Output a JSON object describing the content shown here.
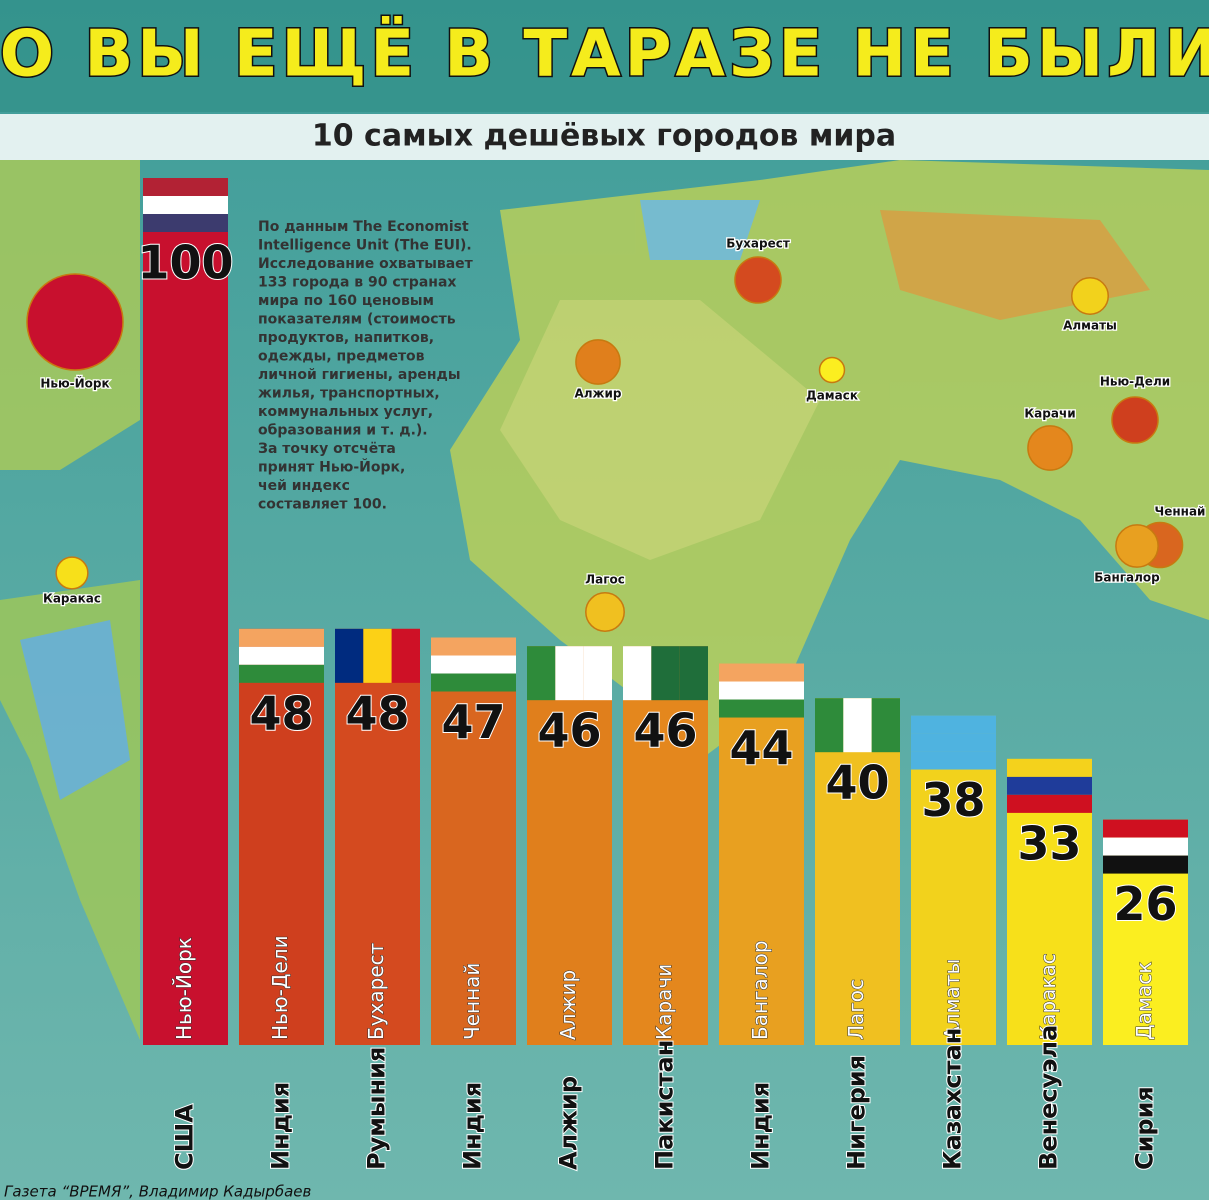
{
  "chart_data": {
    "type": "bar",
    "title": "ЭТО ВЫ ЕЩЁ В ТАРАЗЕ НЕ БЫЛИ...",
    "subtitle": "10 самых дешёвых городов мира",
    "note": [
      "По данным The Economist",
      "Intelligence Unit (The EUI).",
      "Исследование охватывает",
      "133 города в 90 странах",
      "мира по 160 ценовым",
      "показателям (стоимость",
      "продуктов, напитков,",
      "одежды, предметов",
      "личной гигиены, аренды",
      "жилья, транспортных,",
      "коммунальных услуг,",
      "образования и т. д.).",
      "За точку отсчёта",
      "принят Нью-Йорк,",
      "чей индекс",
      "составляет 100."
    ],
    "categories": [
      "Нью-Йорк",
      "Нью-Дели",
      "Бухарест",
      "Ченнай",
      "Алжир",
      "Карачи",
      "Бангалор",
      "Лагос",
      "Алматы",
      "Каракас",
      "Дамаск"
    ],
    "countries": [
      "США",
      "Индия",
      "Румыния",
      "Индия",
      "Алжир",
      "Пакистан",
      "Индия",
      "Нигерия",
      "Казахстан",
      "Венесуэла",
      "Сирия"
    ],
    "values": [
      100,
      48,
      48,
      47,
      46,
      46,
      44,
      40,
      38,
      33,
      26
    ],
    "colors": [
      "#c8102e",
      "#cf3f1e",
      "#d44a1f",
      "#d9661f",
      "#e07f1c",
      "#e4871d",
      "#e8a020",
      "#f0c020",
      "#f2d21c",
      "#f7e01a",
      "#fbee20"
    ],
    "credit": "Газета “ВРЕМЯ”, Владимир Кадырбаев"
  }
}
